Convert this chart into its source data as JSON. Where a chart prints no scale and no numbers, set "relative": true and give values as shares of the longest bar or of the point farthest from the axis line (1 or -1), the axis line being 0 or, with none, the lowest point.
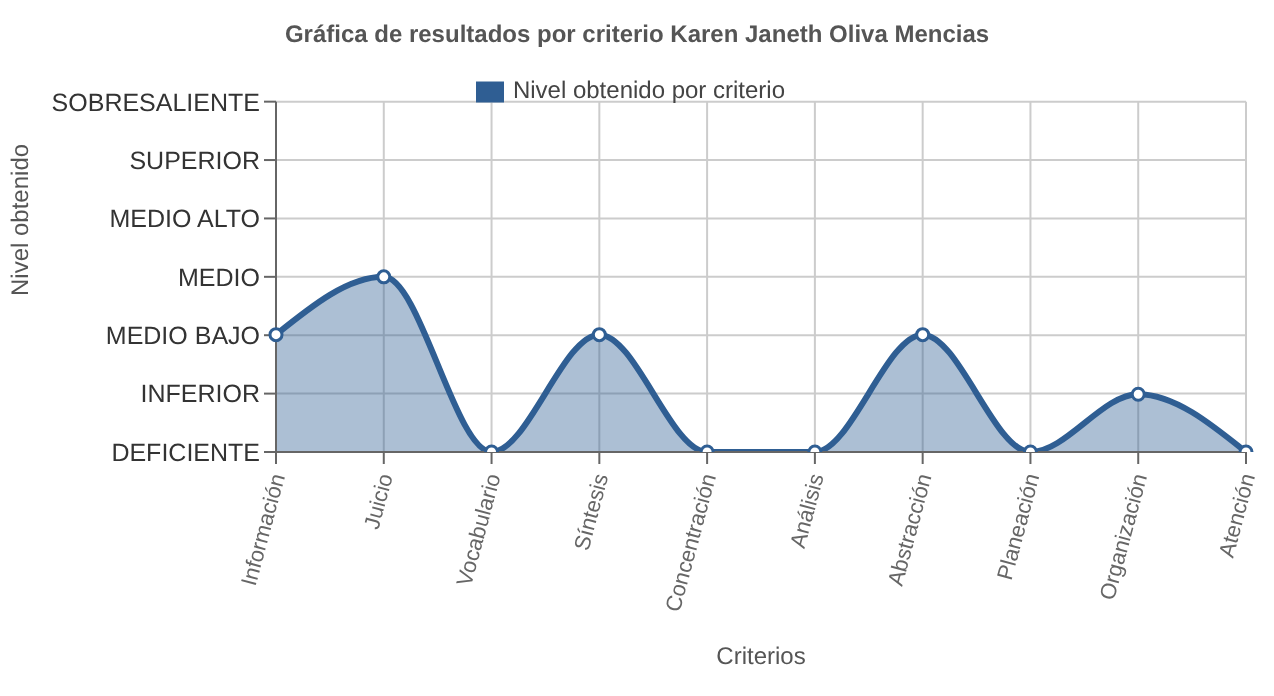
{
  "chart_data": {
    "type": "area",
    "title": "Gráfica de resultados por criterio Karen Janeth Oliva Mencias",
    "xlabel": "Criterios",
    "annotations": [
      "Nivel obtenido"
    ],
    "categories": [
      "Información",
      "Juicio",
      "Vocabulario",
      "Síntesis",
      "Concentración",
      "Análisis",
      "Abstracción",
      "Planeación",
      "Organización",
      "Atención"
    ],
    "series": [
      {
        "name": "Nivel obtenido por criterio",
        "color": "#2f5e93",
        "values": [
          0.67,
          1,
          0,
          0.67,
          0,
          0,
          0.67,
          0,
          0.33,
          0
        ]
      }
    ],
    "relative": true,
    "y_categories": [
      "SOBRESALIENTE",
      "SUPERIOR",
      "MEDIO ALTO",
      "MEDIO",
      "MEDIO BAJO",
      "INFERIOR",
      "DEFICIENTE"
    ],
    "grid": true,
    "legend": "top",
    "marker": "circle",
    "line_style": "solid"
  }
}
